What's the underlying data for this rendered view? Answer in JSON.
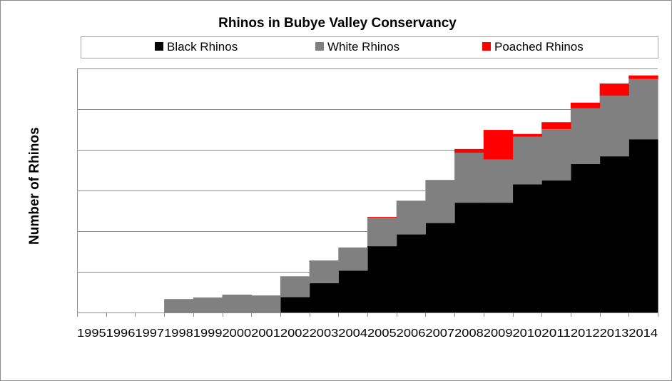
{
  "chart_data": {
    "type": "bar",
    "stacked": true,
    "title": "Rhinos in Bubye Valley Conservancy",
    "xlabel": "",
    "ylabel": "Number of Rhinos",
    "ytick_labels": "hidden",
    "grid": "horizontal",
    "legend_position": "top",
    "categories": [
      "1995",
      "1996",
      "1997",
      "1998",
      "1999",
      "2000",
      "2001",
      "2002",
      "2003",
      "2004",
      "2005",
      "2006",
      "2007",
      "2008",
      "2009",
      "2010",
      "2011",
      "2012",
      "2013",
      "2014"
    ],
    "ylim": [
      0,
      600
    ],
    "y_gridlines": [
      0,
      100,
      200,
      300,
      400,
      500,
      600
    ],
    "series": [
      {
        "name": "Black Rhinos",
        "color": "#000000",
        "values": [
          0,
          0,
          0,
          0,
          0,
          0,
          0,
          38,
          72,
          103,
          163,
          192,
          220,
          270,
          270,
          315,
          325,
          365,
          384,
          426
        ]
      },
      {
        "name": "White Rhinos",
        "color": "#808080",
        "values": [
          0,
          0,
          0,
          33,
          37,
          44,
          42,
          51,
          56,
          57,
          70,
          83,
          106,
          123,
          106,
          117,
          126,
          137,
          149,
          148
        ]
      },
      {
        "name": "Poached Rhinos",
        "color": "#ff0000",
        "values": [
          0,
          0,
          0,
          0,
          0,
          0,
          0,
          0,
          0,
          0,
          2,
          0,
          0,
          9,
          73,
          7,
          17,
          14,
          30,
          9
        ]
      }
    ]
  }
}
